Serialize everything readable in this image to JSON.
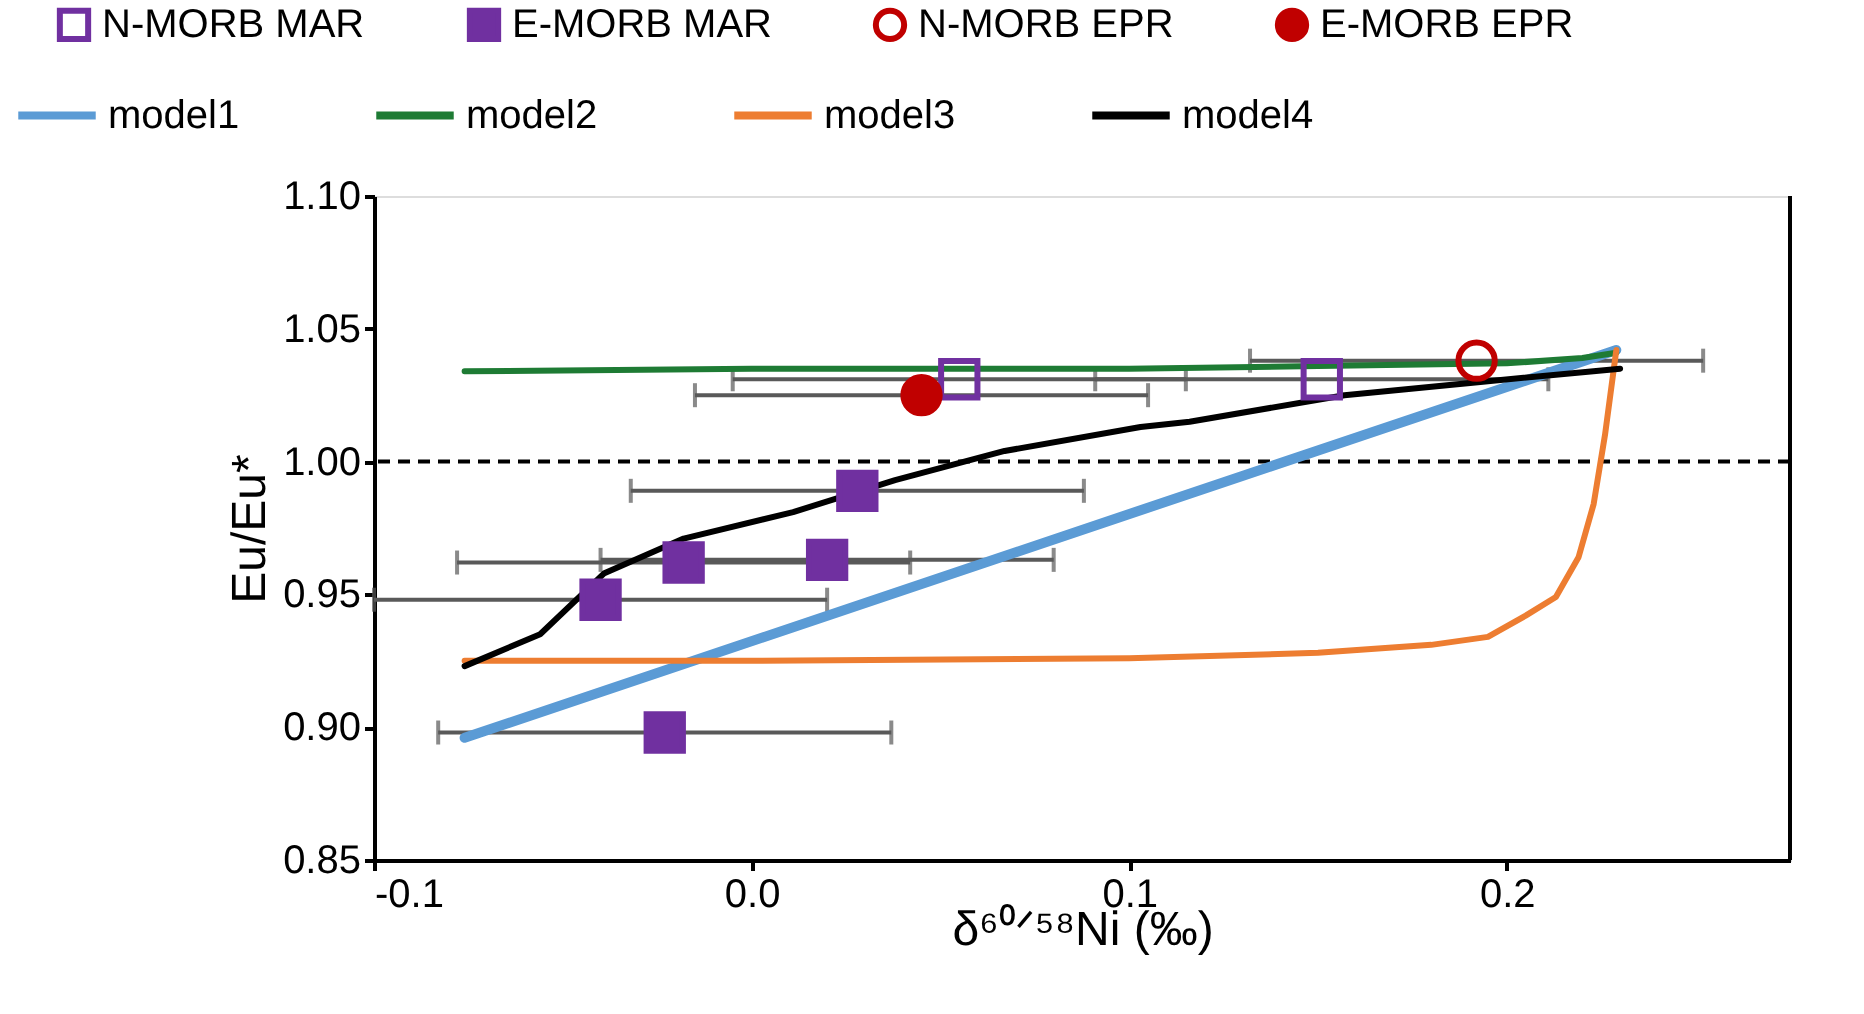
{
  "chart_data": {
    "type": "scatter",
    "xlabel": "δ⁶⁰ᐟ⁵⁸Ni (‰)",
    "ylabel": "Eu/Eu*",
    "xlim": [
      -0.1,
      0.275
    ],
    "xticks": [
      -0.1,
      {
        "value": 0.0,
        "label": "0.0"
      },
      0.1,
      0.2
    ],
    "ylim": [
      0.85,
      1.1
    ],
    "yticks": [
      0.85,
      {
        "value": 0.9,
        "label": "0.90"
      },
      0.95,
      {
        "value": 1.0,
        "label": "1.00"
      },
      1.05,
      {
        "value": 1.1,
        "label": "1.10"
      }
    ],
    "grid": false,
    "legend": "top",
    "ref_lines": [
      {
        "axis": "y",
        "value": 1.0,
        "color": "#000000",
        "line_style": "dashed"
      }
    ],
    "series": [
      {
        "name": "N-MORB MAR",
        "marker": "square",
        "color": "#7030a0",
        "x": [
          0.055,
          0.151
        ],
        "values": [
          1.031,
          1.031
        ],
        "xerrors": [
          0.06,
          0.06
        ]
      },
      {
        "name": "E-MORB MAR",
        "marker": "square",
        "color": "#7030a0",
        "x": [
          0.028,
          -0.018,
          0.02,
          -0.04,
          -0.023
        ],
        "values": [
          0.989,
          0.962,
          0.963,
          0.948,
          0.898
        ],
        "xerrors": [
          0.06,
          0.06,
          0.06,
          0.06,
          0.06
        ]
      },
      {
        "name": "N-MORB EPR",
        "marker": "circle",
        "color": "#c00000",
        "x": [
          0.192
        ],
        "values": [
          1.038
        ],
        "xerrors": [
          0.06
        ]
      },
      {
        "name": "E-MORB EPR",
        "marker": "circle",
        "color": "#c00000",
        "x": [
          0.045
        ],
        "values": [
          1.025
        ],
        "xerrors": [
          0.06
        ]
      },
      {
        "name": "model1",
        "type": "line",
        "marker": "none",
        "color": "#5b9bd5",
        "x": [
          -0.076,
          0.229
        ],
        "values": [
          0.896,
          1.042
        ]
      },
      {
        "name": "model2",
        "type": "line",
        "marker": "none",
        "color": "#1e7b34",
        "x": [
          -0.076,
          0.0,
          0.1,
          0.15,
          0.2,
          0.22,
          0.229
        ],
        "values": [
          1.034,
          1.035,
          1.035,
          1.036,
          1.037,
          1.039,
          1.041
        ]
      },
      {
        "name": "model3",
        "type": "line",
        "marker": "none",
        "color": "#ed7d31",
        "x": [
          -0.076,
          0.0,
          0.1,
          0.15,
          0.18,
          0.195,
          0.205,
          0.213,
          0.219,
          0.223,
          0.226,
          0.229
        ],
        "values": [
          0.925,
          0.925,
          0.926,
          0.928,
          0.931,
          0.934,
          0.942,
          0.949,
          0.964,
          0.984,
          1.01,
          1.042
        ]
      },
      {
        "name": "model4",
        "type": "line",
        "marker": "none",
        "color": "#000000",
        "x": [
          -0.076,
          -0.056,
          -0.039,
          -0.018,
          0.011,
          0.038,
          0.067,
          0.103,
          0.116,
          0.157,
          0.193,
          0.23
        ],
        "values": [
          0.923,
          0.935,
          0.958,
          0.971,
          0.981,
          0.993,
          1.004,
          1.013,
          1.015,
          1.025,
          1.03,
          1.035
        ]
      }
    ]
  }
}
